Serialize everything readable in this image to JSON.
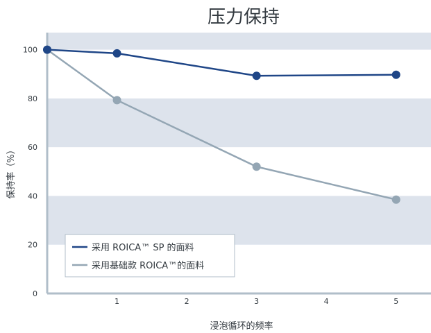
{
  "chart_data": {
    "type": "line",
    "title": "压力保持",
    "xlabel": "浸泡循环的频率",
    "ylabel": "保持率（%）",
    "x": [
      0,
      1,
      3,
      5
    ],
    "x_ticks": [
      1,
      2,
      3,
      4,
      5
    ],
    "xlim": [
      0,
      5.5
    ],
    "y_ticks": [
      0,
      20,
      40,
      60,
      80,
      100
    ],
    "ylim": [
      0,
      107
    ],
    "grid": "alternating horizontal bands",
    "legend_position": "bottom-left",
    "series": [
      {
        "name": "采用 ROICA™ SP 的面料",
        "values": [
          100,
          98.5,
          89.3,
          89.7
        ],
        "color": "#1f4687"
      },
      {
        "name": "采用基础款 ROICA™的面料",
        "values": [
          100,
          79.3,
          52,
          38.5
        ],
        "color": "#94a6b4"
      }
    ],
    "colors": {
      "band": "#dde3ec",
      "axis": "#b0bec9",
      "text": "#333a40"
    }
  }
}
